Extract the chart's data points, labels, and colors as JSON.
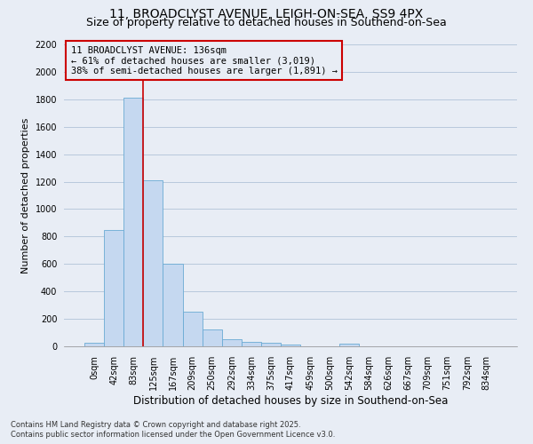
{
  "title_line1": "11, BROADCLYST AVENUE, LEIGH-ON-SEA, SS9 4PX",
  "title_line2": "Size of property relative to detached houses in Southend-on-Sea",
  "xlabel": "Distribution of detached houses by size in Southend-on-Sea",
  "ylabel": "Number of detached properties",
  "bar_labels": [
    "0sqm",
    "42sqm",
    "83sqm",
    "125sqm",
    "167sqm",
    "209sqm",
    "250sqm",
    "292sqm",
    "334sqm",
    "375sqm",
    "417sqm",
    "459sqm",
    "500sqm",
    "542sqm",
    "584sqm",
    "626sqm",
    "667sqm",
    "709sqm",
    "751sqm",
    "792sqm",
    "834sqm"
  ],
  "bar_values": [
    25,
    850,
    1810,
    1210,
    600,
    255,
    125,
    50,
    30,
    25,
    15,
    0,
    0,
    20,
    0,
    0,
    0,
    0,
    0,
    0,
    0
  ],
  "bar_color": "#c5d8f0",
  "bar_edge_color": "#6aaad4",
  "vline_color": "#cc0000",
  "vline_x_index": 3,
  "annotation_text": "11 BROADCLYST AVENUE: 136sqm\n← 61% of detached houses are smaller (3,019)\n38% of semi-detached houses are larger (1,891) →",
  "annotation_box_edgecolor": "#cc0000",
  "ylim_max": 2200,
  "yticks": [
    0,
    200,
    400,
    600,
    800,
    1000,
    1200,
    1400,
    1600,
    1800,
    2000,
    2200
  ],
  "grid_color": "#b8c8dc",
  "background_color": "#e8edf5",
  "footnote_line1": "Contains HM Land Registry data © Crown copyright and database right 2025.",
  "footnote_line2": "Contains public sector information licensed under the Open Government Licence v3.0.",
  "title_fontsize": 10,
  "subtitle_fontsize": 9,
  "tick_fontsize": 7,
  "ylabel_fontsize": 8,
  "xlabel_fontsize": 8.5,
  "footnote_fontsize": 6,
  "annot_fontsize": 7.5
}
